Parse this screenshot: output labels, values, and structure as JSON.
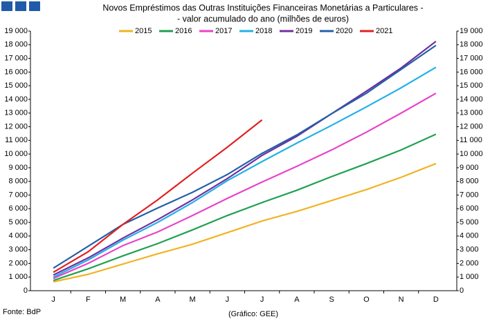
{
  "chart_data": {
    "type": "line",
    "title": "Novos Empréstimos das Outras Instituições Financeiras Monetárias a Particulares -",
    "subtitle": "- valor acumulado do ano (milhões de euros)",
    "source": "Fonte: BdP",
    "credit": "(Gráfico: GEE)",
    "categories": [
      "J",
      "F",
      "M",
      "A",
      "M",
      "J",
      "J",
      "A",
      "S",
      "O",
      "N",
      "D"
    ],
    "ylim": [
      0,
      19000
    ],
    "yticks": [
      0,
      {
        "value": 1000,
        "label": "1 000"
      },
      {
        "value": 2000,
        "label": "2 000"
      },
      {
        "value": 3000,
        "label": "3 000"
      },
      {
        "value": 4000,
        "label": "4 000"
      },
      {
        "value": 5000,
        "label": "5 000"
      },
      {
        "value": 6000,
        "label": "6 000"
      },
      {
        "value": 7000,
        "label": "7 000"
      },
      {
        "value": 8000,
        "label": "8 000"
      },
      {
        "value": 9000,
        "label": "9 000"
      },
      {
        "value": 10000,
        "label": "10 000"
      },
      {
        "value": 11000,
        "label": "11 000"
      },
      {
        "value": 12000,
        "label": "12 000"
      },
      {
        "value": 13000,
        "label": "13 000"
      },
      {
        "value": 14000,
        "label": "14 000"
      },
      {
        "value": 15000,
        "label": "15 000"
      },
      {
        "value": 16000,
        "label": "16 000"
      },
      {
        "value": 17000,
        "label": "17 000"
      },
      {
        "value": 18000,
        "label": "18 000"
      },
      {
        "value": 19000,
        "label": "19 000"
      }
    ],
    "grid": false,
    "series": [
      {
        "name": "2015",
        "color": "#f0b323",
        "values": [
          650,
          1200,
          1950,
          2700,
          3400,
          4250,
          5100,
          5800,
          6600,
          7400,
          8300,
          9300
        ]
      },
      {
        "name": "2016",
        "color": "#1fa04f",
        "values": [
          750,
          1600,
          2550,
          3450,
          4450,
          5500,
          6450,
          7350,
          8350,
          9300,
          10300,
          11450
        ]
      },
      {
        "name": "2017",
        "color": "#e843c8",
        "values": [
          900,
          2000,
          3300,
          4300,
          5500,
          6750,
          7950,
          9100,
          10300,
          11600,
          13000,
          14450
        ]
      },
      {
        "name": "2018",
        "color": "#22b0e8",
        "values": [
          1000,
          2250,
          3700,
          5000,
          6450,
          8050,
          9450,
          10800,
          12100,
          13450,
          14850,
          16350
        ]
      },
      {
        "name": "2019",
        "color": "#7030a0",
        "values": [
          1150,
          2400,
          3850,
          5200,
          6650,
          8200,
          9900,
          11300,
          12950,
          14600,
          16300,
          18250
        ]
      },
      {
        "name": "2020",
        "color": "#2360a8",
        "values": [
          1650,
          3250,
          4850,
          6050,
          7200,
          8500,
          10050,
          11400,
          12950,
          14450,
          16200,
          17950
        ]
      },
      {
        "name": "2021",
        "color": "#e02020",
        "values": [
          1350,
          2850,
          4850,
          6650,
          8600,
          10500,
          12500,
          null,
          null,
          null,
          null,
          null
        ]
      }
    ]
  }
}
